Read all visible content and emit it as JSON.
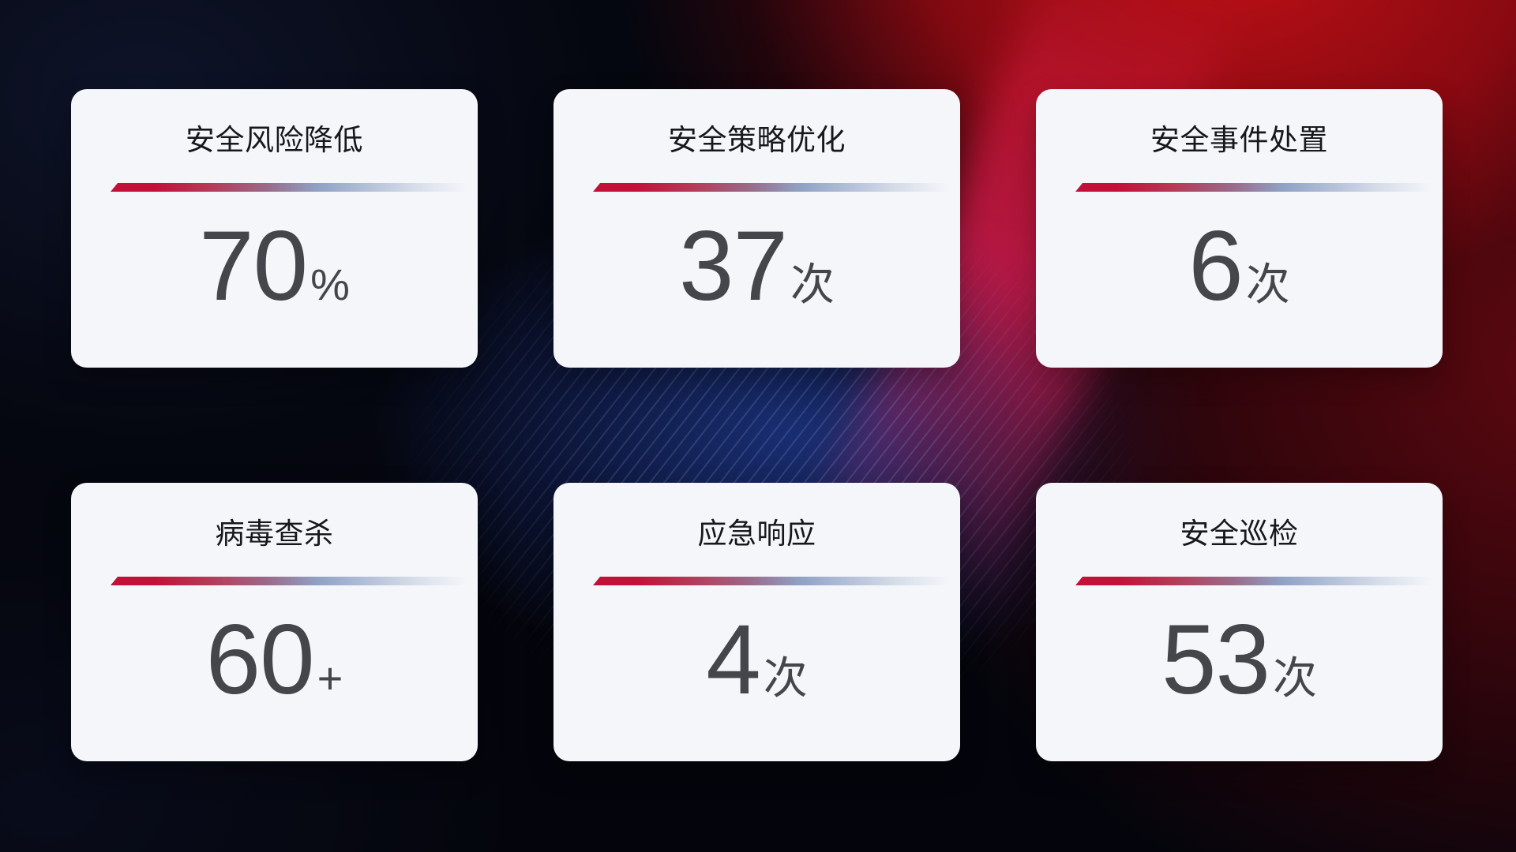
{
  "cards": [
    {
      "title": "安全风险降低",
      "value": "70",
      "suffix": "%"
    },
    {
      "title": "安全策略优化",
      "value": "37",
      "suffix": "次"
    },
    {
      "title": "安全事件处置",
      "value": "6",
      "suffix": "次"
    },
    {
      "title": "病毒查杀",
      "value": "60",
      "suffix": "+"
    },
    {
      "title": "应急响应",
      "value": "4",
      "suffix": "次"
    },
    {
      "title": "安全巡检",
      "value": "53",
      "suffix": "次"
    }
  ],
  "colors": {
    "bg_base": "#04050c",
    "bg_red_bright": "#c01016",
    "bg_red_deep": "#56050c",
    "bg_blue_glow": "#1a3078",
    "beam_crimson": "#d61646",
    "streak_blue": "#a4c4f0",
    "card_bg": "#f5f6fa",
    "title_color": "#17181c",
    "value_color": "#45464b",
    "divider_red": "#c31038",
    "divider_mauve": "#9a6a8a",
    "divider_blue": "#8fa2c4"
  }
}
